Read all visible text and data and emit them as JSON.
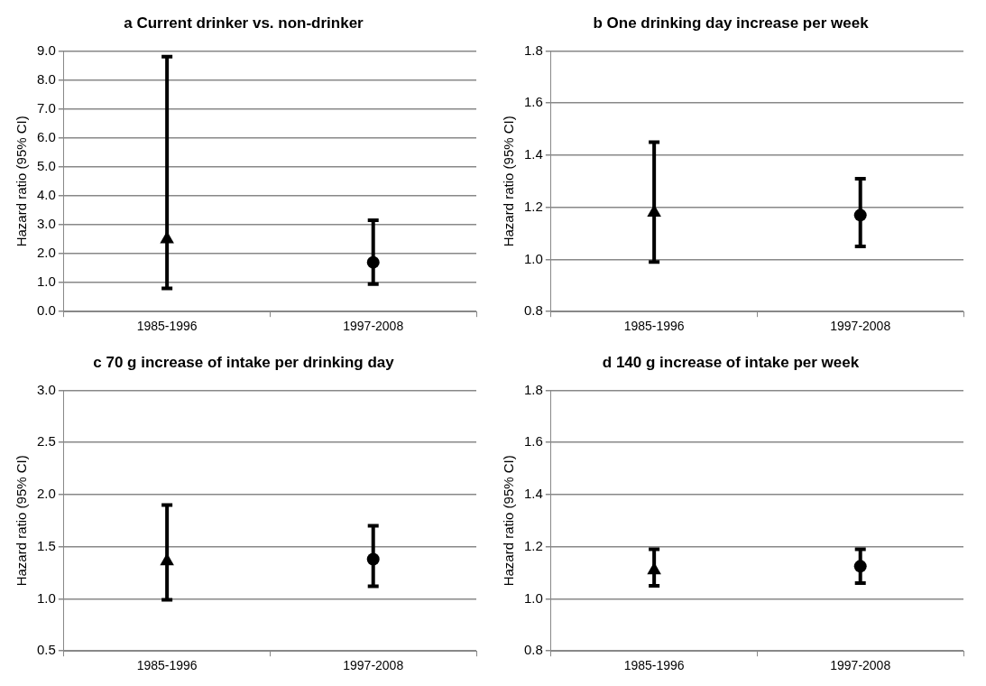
{
  "chart_data": [
    {
      "type": "scatter",
      "title": "a Current drinker vs. non-drinker",
      "ylabel": "Hazard ratio (95% CI)",
      "categories": [
        "1985-1996",
        "1997-2008"
      ],
      "series": [
        {
          "color": "#000000",
          "marker": "triangle",
          "values": [
            2.5,
            null
          ],
          "errors": [
            [
              0.8,
              8.8
            ],
            null
          ]
        },
        {
          "color": "#000000",
          "marker": "circle",
          "values": [
            null,
            1.7
          ],
          "errors": [
            null,
            [
              0.95,
              3.15
            ]
          ]
        }
      ],
      "ylim": [
        0,
        9
      ],
      "yticks": [
        {
          "value": 0,
          "label": "0.0"
        },
        {
          "value": 1,
          "label": "1.0"
        },
        {
          "value": 2,
          "label": "2.0"
        },
        {
          "value": 3,
          "label": "3.0"
        },
        {
          "value": 4,
          "label": "4.0"
        },
        {
          "value": 5,
          "label": "5.0"
        },
        {
          "value": 6,
          "label": "6.0"
        },
        {
          "value": 7,
          "label": "7.0"
        },
        {
          "value": 8,
          "label": "8.0"
        },
        {
          "value": 9,
          "label": "9.0"
        }
      ],
      "grid": "y"
    },
    {
      "type": "scatter",
      "title": "b One drinking day increase per week",
      "ylabel": "Hazard ratio (95% CI)",
      "categories": [
        "1985-1996",
        "1997-2008"
      ],
      "series": [
        {
          "color": "#000000",
          "marker": "triangle",
          "values": [
            1.18,
            null
          ],
          "errors": [
            [
              0.99,
              1.45
            ],
            null
          ]
        },
        {
          "color": "#000000",
          "marker": "circle",
          "values": [
            null,
            1.17
          ],
          "errors": [
            null,
            [
              1.05,
              1.31
            ]
          ]
        }
      ],
      "ylim": [
        0.8,
        1.8
      ],
      "yticks": [
        0.8,
        {
          "value": 1,
          "label": "1.0"
        },
        1.2,
        1.4,
        1.6,
        1.8
      ],
      "grid": "y"
    },
    {
      "type": "scatter",
      "title": "c 70 g increase of intake per drinking day",
      "ylabel": "Hazard ratio (95% CI)",
      "categories": [
        "1985-1996",
        "1997-2008"
      ],
      "series": [
        {
          "color": "#000000",
          "marker": "triangle",
          "values": [
            1.36,
            null
          ],
          "errors": [
            [
              0.99,
              1.9
            ],
            null
          ]
        },
        {
          "color": "#000000",
          "marker": "circle",
          "values": [
            null,
            1.38
          ],
          "errors": [
            null,
            [
              1.12,
              1.7
            ]
          ]
        }
      ],
      "ylim": [
        0.5,
        3
      ],
      "yticks": [
        0.5,
        {
          "value": 1,
          "label": "1.0"
        },
        1.5,
        {
          "value": 2,
          "label": "2.0"
        },
        2.5,
        {
          "value": 3,
          "label": "3.0"
        }
      ],
      "grid": "y"
    },
    {
      "type": "scatter",
      "title": "d 140 g increase of intake per week",
      "ylabel": "Hazard ratio (95% CI)",
      "categories": [
        "1985-1996",
        "1997-2008"
      ],
      "series": [
        {
          "color": "#000000",
          "marker": "triangle",
          "values": [
            1.11,
            null
          ],
          "errors": [
            [
              1.05,
              1.19
            ],
            null
          ]
        },
        {
          "color": "#000000",
          "marker": "circle",
          "values": [
            null,
            1.125
          ],
          "errors": [
            null,
            [
              1.06,
              1.19
            ]
          ]
        }
      ],
      "ylim": [
        0.8,
        1.8
      ],
      "yticks": [
        0.8,
        {
          "value": 1,
          "label": "1.0"
        },
        1.2,
        1.4,
        1.6,
        1.8
      ],
      "grid": "y"
    }
  ]
}
